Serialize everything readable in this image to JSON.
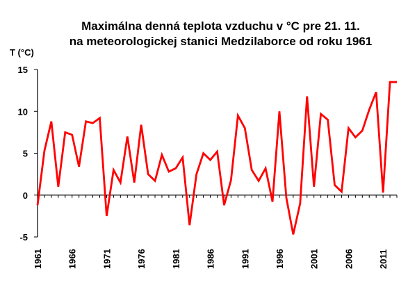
{
  "chart_data": {
    "type": "line",
    "title": "Maximálna denná teplota vzduchu v °C pre 21. 11.",
    "subtitle": "na meteorologickej stanici Medzilaborce od roku 1961",
    "ylabel": "T (°C)",
    "xlabel": "",
    "ylim": [
      -5,
      15
    ],
    "yticks": [
      -5,
      0,
      5,
      10,
      15
    ],
    "xlim": [
      1961,
      2013
    ],
    "xticks": [
      1961,
      1966,
      1971,
      1976,
      1981,
      1986,
      1991,
      1996,
      2001,
      2006,
      2011
    ],
    "grid": false,
    "legend": "none",
    "series": [
      {
        "color": "#ff0000",
        "x": [
          1961,
          1962,
          1963,
          1964,
          1965,
          1966,
          1967,
          1968,
          1969,
          1970,
          1971,
          1972,
          1973,
          1974,
          1975,
          1976,
          1977,
          1978,
          1979,
          1980,
          1981,
          1982,
          1983,
          1984,
          1985,
          1986,
          1987,
          1988,
          1989,
          1990,
          1991,
          1992,
          1993,
          1994,
          1995,
          1996,
          1997,
          1998,
          1999,
          2000,
          2001,
          2002,
          2003,
          2004,
          2005,
          2006,
          2007,
          2008,
          2009,
          2010,
          2011,
          2012,
          2013
        ],
        "values": [
          -1.2,
          5.3,
          8.8,
          1.0,
          7.5,
          7.2,
          3.4,
          8.8,
          8.6,
          9.2,
          -2.5,
          3.0,
          1.5,
          7.0,
          1.5,
          8.4,
          2.5,
          1.7,
          4.8,
          2.8,
          3.2,
          4.5,
          -3.6,
          2.5,
          5.0,
          4.2,
          5.2,
          -1.2,
          1.8,
          9.5,
          8.0,
          3.0,
          1.7,
          3.2,
          -0.8,
          10.0,
          -0.3,
          -4.7,
          -1.0,
          11.8,
          1.0,
          9.7,
          9.0,
          1.2,
          0.4,
          8.0,
          6.9,
          7.7,
          10.2,
          12.3,
          0.3,
          13.5,
          13.5
        ]
      }
    ]
  }
}
